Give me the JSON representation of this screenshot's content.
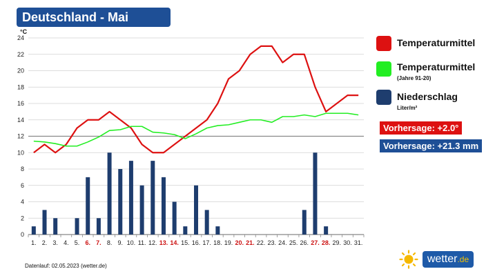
{
  "title": "Deutschland - Mai",
  "legend": {
    "temp": {
      "label": "Temperaturmittel",
      "color": "#dd1111"
    },
    "normal": {
      "label": "Temperaturmittel",
      "sub": "(Jahre 91-20)",
      "color": "#22ee22"
    },
    "precip": {
      "label": "Niederschlag",
      "sub": "Liter/m²",
      "color": "#1e3d6e"
    }
  },
  "forecasts": {
    "temp": {
      "label": "Vorhersage: +2.0°",
      "color": "#dd1111"
    },
    "precip": {
      "label": "Vorhersage: +21.3 mm",
      "color": "#1e4f96"
    }
  },
  "footer": "Datenlauf: 02.05.2023 (wetter.de)",
  "brand": {
    "name": "wetter",
    "tld": ".de"
  },
  "chart_data": {
    "type": "bar+line",
    "yunit": "°C",
    "ylim": [
      0,
      24
    ],
    "yticks": [
      0,
      2,
      4,
      6,
      8,
      10,
      12,
      14,
      16,
      18,
      20,
      22,
      24
    ],
    "grid": true,
    "categories": [
      "1.",
      "2.",
      "3.",
      "4.",
      "5.",
      "6.",
      "7.",
      "8.",
      "9.",
      "10.",
      "11.",
      "12.",
      "13.",
      "14.",
      "15.",
      "16.",
      "17.",
      "18.",
      "19.",
      "20.",
      "21.",
      "22.",
      "23.",
      "24.",
      "25.",
      "26.",
      "27.",
      "28.",
      "29.",
      "30.",
      "31."
    ],
    "weekend_days": [
      6,
      7,
      13,
      14,
      20,
      21,
      27,
      28
    ],
    "weekend_color": "#cc1111",
    "series": [
      {
        "name": "Temperaturmittel",
        "type": "line",
        "color": "#dd1111",
        "values": [
          10,
          11,
          10,
          11,
          13,
          14,
          14,
          15,
          14,
          13,
          11,
          10,
          10,
          11,
          12,
          13,
          14,
          16,
          19,
          20,
          22,
          23,
          23,
          21,
          22,
          22,
          18,
          15,
          16,
          17,
          17
        ]
      },
      {
        "name": "Temperaturmittel (Jahre 91-20)",
        "type": "line",
        "color": "#22ee22",
        "values": [
          11.4,
          11.3,
          11.1,
          10.8,
          10.8,
          11.3,
          11.9,
          12.7,
          12.8,
          13.2,
          13.2,
          12.5,
          12.4,
          12.2,
          11.7,
          12.3,
          13.0,
          13.3,
          13.4,
          13.7,
          14.0,
          14.0,
          13.7,
          14.4,
          14.4,
          14.6,
          14.4,
          14.8,
          14.8,
          14.8,
          14.6
        ]
      },
      {
        "name": "Niederschlag",
        "type": "bar",
        "color": "#1e3d6e",
        "values": [
          1,
          3,
          2,
          0,
          2,
          7,
          2,
          10,
          8,
          9,
          6,
          9,
          7,
          4,
          1,
          6,
          3,
          1,
          0,
          0,
          0,
          0,
          0,
          0,
          0,
          3,
          10,
          1,
          0,
          0,
          0
        ]
      }
    ]
  }
}
